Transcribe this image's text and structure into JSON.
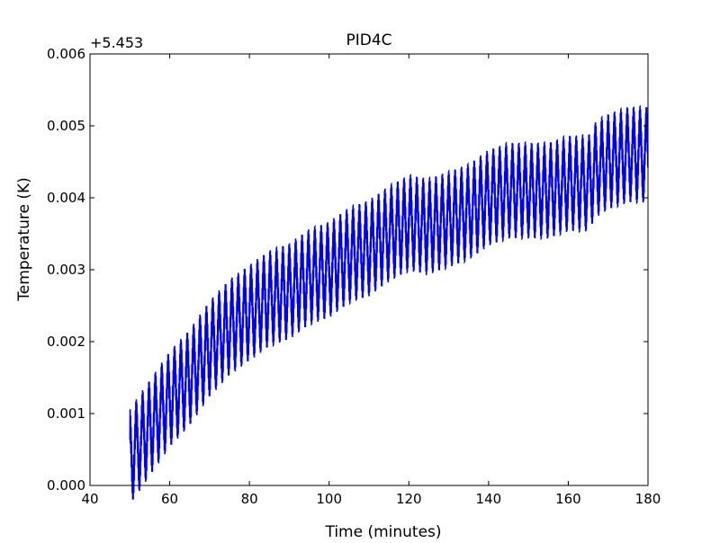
{
  "chart_data": {
    "type": "line",
    "title": "PID4C",
    "xlabel": "Time (minutes)",
    "ylabel": "Temperature (K)",
    "y_offset_label": "+5.453",
    "xlim": [
      40,
      180
    ],
    "ylim": [
      0,
      0.006
    ],
    "x_ticks": [
      "40",
      "60",
      "80",
      "100",
      "120",
      "140",
      "160",
      "180"
    ],
    "y_ticks": [
      "0.000",
      "0.001",
      "0.002",
      "0.003",
      "0.004",
      "0.005",
      "0.006"
    ],
    "grid": false,
    "line_color": "#0000ff",
    "series": [
      {
        "trend_x": [
          50,
          55,
          60,
          65,
          70,
          75,
          80,
          85,
          90,
          95,
          100,
          105,
          110,
          115,
          120,
          125,
          130,
          135,
          140,
          145,
          150,
          155,
          160,
          165,
          167,
          170,
          175,
          180
        ],
        "trend_y": [
          0.0004,
          0.0008,
          0.0012,
          0.0015,
          0.0019,
          0.0022,
          0.0024,
          0.0026,
          0.0027,
          0.0029,
          0.003,
          0.0032,
          0.0033,
          0.0035,
          0.00365,
          0.0036,
          0.0037,
          0.0038,
          0.004,
          0.0041,
          0.0041,
          0.0041,
          0.0042,
          0.0042,
          0.0044,
          0.0045,
          0.0046,
          0.0046
        ],
        "oscillation_period_minutes": 1.6,
        "oscillation_amplitude": 0.00045
      }
    ]
  }
}
